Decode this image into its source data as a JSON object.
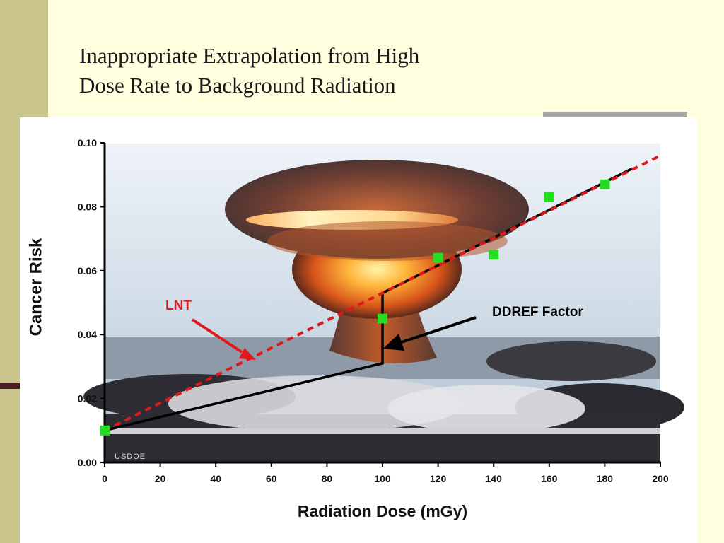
{
  "slide": {
    "title_line1": "Inappropriate Extrapolation from High",
    "title_line2": "Dose Rate to Background Radiation"
  },
  "chart_data": {
    "type": "line",
    "ylabel": "Cancer Risk",
    "xlabel": "Radiation Dose (mGy)",
    "xlim": [
      0,
      200
    ],
    "ylim": [
      0,
      0.1
    ],
    "xticks": [
      "0",
      "20",
      "40",
      "60",
      "80",
      "100",
      "120",
      "140",
      "160",
      "180",
      "200"
    ],
    "yticks": [
      "0.00",
      "0.02",
      "0.04",
      "0.06",
      "0.08",
      "0.10"
    ],
    "background_credit": "USDOE",
    "series": [
      {
        "name": "LNT",
        "style": "dashed",
        "color": "#e0181e",
        "x": [
          0,
          200
        ],
        "y": [
          0.01,
          0.096
        ]
      },
      {
        "name": "DDREF model",
        "style": "solid",
        "color": "#000000",
        "x": [
          0,
          100,
          100,
          190
        ],
        "y": [
          0.01,
          0.031,
          0.053,
          0.092
        ]
      },
      {
        "name": "Observed data",
        "style": "markers",
        "color": "#22dd22",
        "x": [
          0,
          100,
          120,
          140,
          160,
          180
        ],
        "y": [
          0.01,
          0.045,
          0.064,
          0.065,
          0.083,
          0.087
        ]
      }
    ],
    "annotations": [
      {
        "text": "LNT",
        "color": "#e0181e",
        "points_to": [
          55,
          0.033
        ]
      },
      {
        "text": "DDREF Factor",
        "color": "#000000",
        "points_to": [
          100,
          0.036
        ]
      }
    ]
  }
}
